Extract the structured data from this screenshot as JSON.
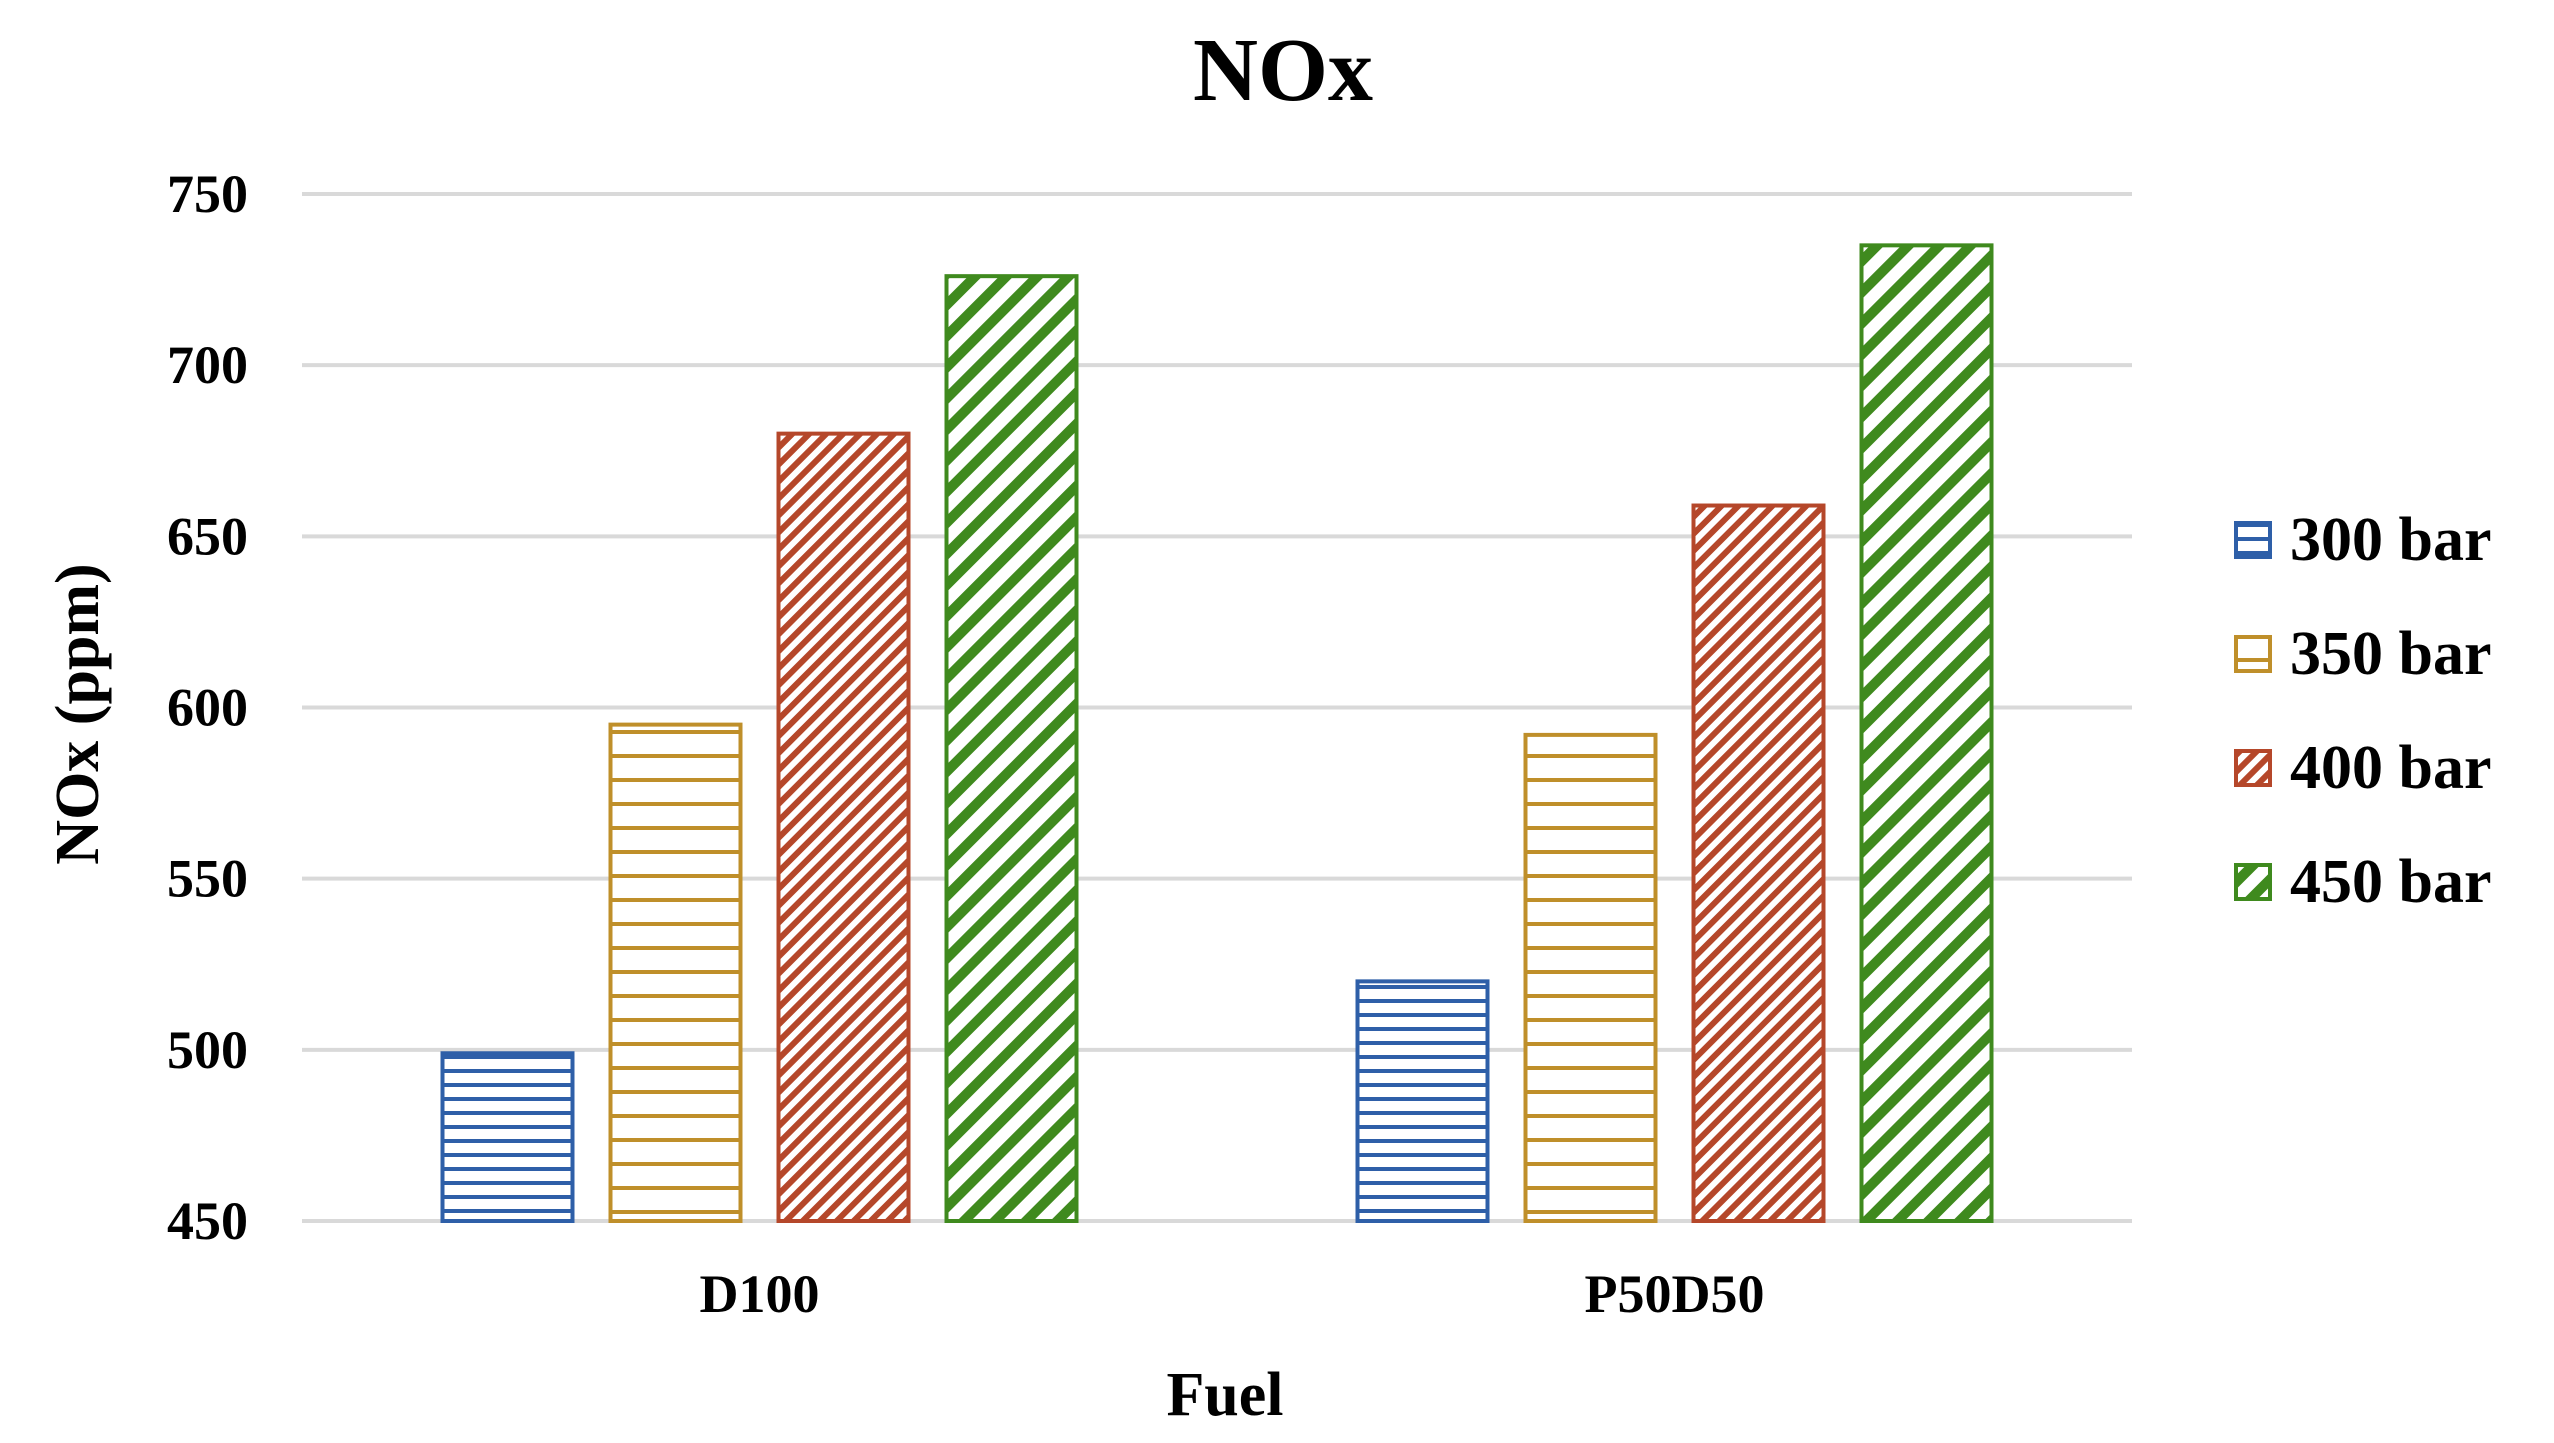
{
  "chart_data": {
    "type": "bar",
    "title": "NOx",
    "xlabel": "Fuel",
    "ylabel": "NOx (ppm)",
    "categories": [
      "D100",
      "P50D50"
    ],
    "ylim": [
      450,
      750
    ],
    "yticks": [
      450,
      500,
      550,
      600,
      650,
      700,
      750
    ],
    "grid": true,
    "legend_position": "right",
    "series": [
      {
        "name": "300 bar",
        "values": [
          499,
          520
        ],
        "color": "#2e5fa8",
        "pattern": "horizontal-dense"
      },
      {
        "name": "350 bar",
        "values": [
          595,
          592
        ],
        "color": "#bf8f2a",
        "pattern": "horizontal-wide"
      },
      {
        "name": "400 bar",
        "values": [
          680,
          659
        ],
        "color": "#b5472a",
        "pattern": "diagonal-dense"
      },
      {
        "name": "450 bar",
        "values": [
          726,
          735
        ],
        "color": "#3f8a1e",
        "pattern": "diagonal-wide"
      }
    ]
  }
}
